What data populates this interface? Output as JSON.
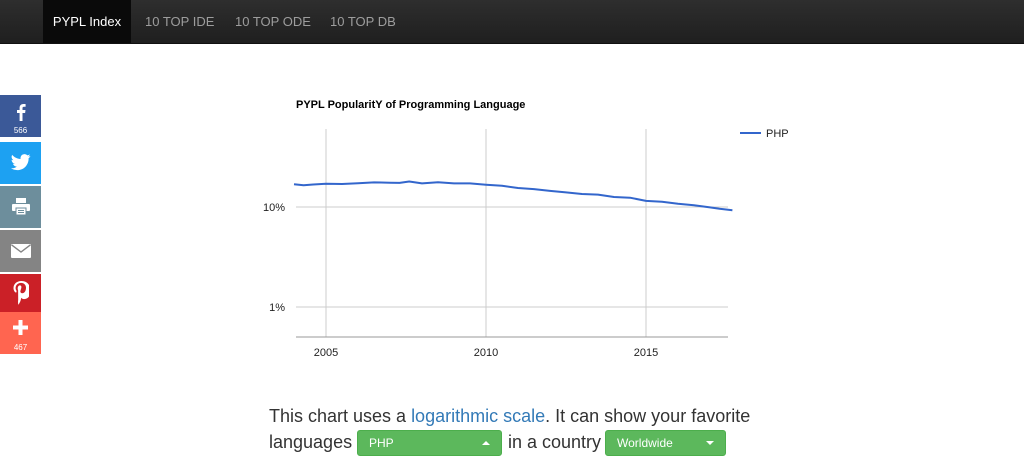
{
  "nav": {
    "items": [
      {
        "label": "PYPL Index",
        "active": true
      },
      {
        "label": "10 TOP IDE",
        "active": false
      },
      {
        "label": "10 TOP ODE",
        "active": false
      },
      {
        "label": "10 TOP DB",
        "active": false
      }
    ]
  },
  "social": {
    "buttons": [
      {
        "name": "facebook",
        "icon": "facebook-icon",
        "color": "#3b5998",
        "count": "566"
      },
      {
        "name": "twitter",
        "icon": "twitter-icon",
        "color": "#1da1f2",
        "count": ""
      },
      {
        "name": "print",
        "icon": "print-icon",
        "color": "#6d8e9c",
        "count": ""
      },
      {
        "name": "email",
        "icon": "email-icon",
        "color": "#848484",
        "count": ""
      },
      {
        "name": "pinterest",
        "icon": "pinterest-icon",
        "color": "#cb2027",
        "count": ""
      },
      {
        "name": "more",
        "icon": "plus-icon",
        "color": "#ff6550",
        "count": "467"
      }
    ]
  },
  "chart_data": {
    "type": "line",
    "title": "PYPL PopularitY of Programming Language",
    "xlabel": "",
    "ylabel": "",
    "y_scale": "log",
    "ylim": [
      0.6,
      30
    ],
    "xlim": [
      2004.0,
      2017.7
    ],
    "x_ticks": [
      {
        "value": 2005,
        "label": "2005"
      },
      {
        "value": 2010,
        "label": "2010"
      },
      {
        "value": 2015,
        "label": "2015"
      }
    ],
    "y_ticks": [
      {
        "value": 1,
        "label": "1%"
      },
      {
        "value": 10,
        "label": "10%"
      }
    ],
    "grid": true,
    "legend_position": "top-right",
    "series": [
      {
        "name": "PHP",
        "color": "#3366cc",
        "x": [
          2004.0,
          2004.3,
          2004.6,
          2005.0,
          2005.5,
          2006.0,
          2006.5,
          2007.0,
          2007.3,
          2007.6,
          2008.0,
          2008.5,
          2009.0,
          2009.5,
          2010.0,
          2010.5,
          2011.0,
          2011.5,
          2012.0,
          2012.5,
          2013.0,
          2013.5,
          2014.0,
          2014.5,
          2015.0,
          2015.5,
          2016.0,
          2016.5,
          2017.0,
          2017.3,
          2017.7
        ],
        "y": [
          16.9,
          16.5,
          16.8,
          17.1,
          17.0,
          17.3,
          17.6,
          17.5,
          17.4,
          18.0,
          17.2,
          17.7,
          17.2,
          17.2,
          16.7,
          16.3,
          15.5,
          15.1,
          14.5,
          14.0,
          13.5,
          13.3,
          12.6,
          12.4,
          11.5,
          11.3,
          10.8,
          10.4,
          9.9,
          9.6,
          9.3
        ]
      }
    ]
  },
  "footer": {
    "text_before": "This chart uses a ",
    "link": "logarithmic scale",
    "text_after": ". It can show your favorite",
    "line2_before": "languages",
    "line2_mid": "in a country",
    "language_select": "PHP",
    "country_select": "Worldwide",
    "button_color": "#5cb85c"
  }
}
